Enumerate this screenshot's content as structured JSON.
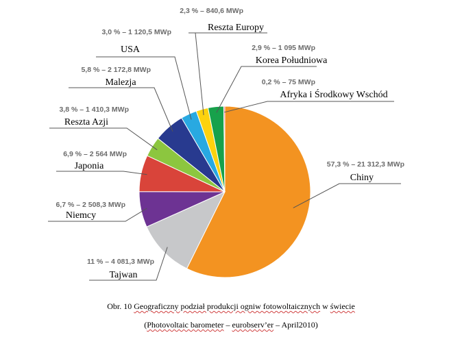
{
  "chart_data": {
    "type": "pie",
    "slices": [
      {
        "name": "Chiny",
        "percent": 57.3,
        "value_mwp": 21312.3,
        "label": "57,3 % – 21 312,3 MWp",
        "color": "#f39321"
      },
      {
        "name": "Tajwan",
        "percent": 11.0,
        "value_mwp": 4081.3,
        "label": "11 % – 4 081,3 MWp",
        "color": "#c7c8ca"
      },
      {
        "name": "Niemcy",
        "percent": 6.7,
        "value_mwp": 2508.3,
        "label": "6,7 % – 2 508,3 MWp",
        "color": "#6d3393"
      },
      {
        "name": "Japonia",
        "percent": 6.9,
        "value_mwp": 2564,
        "label": "6,9 % – 2 564 MWp",
        "color": "#d9443a"
      },
      {
        "name": "Reszta Azji",
        "percent": 3.8,
        "value_mwp": 1410.3,
        "label": "3,8 % – 1 410,3 MWp",
        "color": "#8cc63f"
      },
      {
        "name": "Malezja",
        "percent": 5.8,
        "value_mwp": 2172.8,
        "label": "5,8 % – 2 172,8 MWp",
        "color": "#283a8f"
      },
      {
        "name": "USA",
        "percent": 3.0,
        "value_mwp": 1120.5,
        "label": "3,0 % – 1 120,5 MWp",
        "color": "#29a9e1"
      },
      {
        "name": "Reszta Europy",
        "percent": 2.3,
        "value_mwp": 840.6,
        "label": "2,3 % – 840,6 MWp",
        "color": "#fdd20e"
      },
      {
        "name": "Korea Południowa",
        "percent": 2.9,
        "value_mwp": 1095,
        "label": "2,9 % – 1 095 MWp",
        "color": "#17a14b"
      },
      {
        "name": "Afryka i Środkowy Wschód",
        "percent": 0.2,
        "value_mwp": 75,
        "label": "0,2 % – 75 MWp",
        "color": "#e0306f"
      }
    ]
  },
  "caption": {
    "line1_prefix": "Obr. 10 ",
    "line1_underlined": "Geograficzny podział produkcji ogniw fotowoltaicznych",
    "line1_mid": " w ",
    "line1_end": "świecie",
    "line2_prefix": "(",
    "line2_underlined": "Photovoltaic barometer",
    "line2_mid": " – ",
    "line2_underlined2": "eurobserv’er",
    "line2_end": " – April2010)"
  }
}
